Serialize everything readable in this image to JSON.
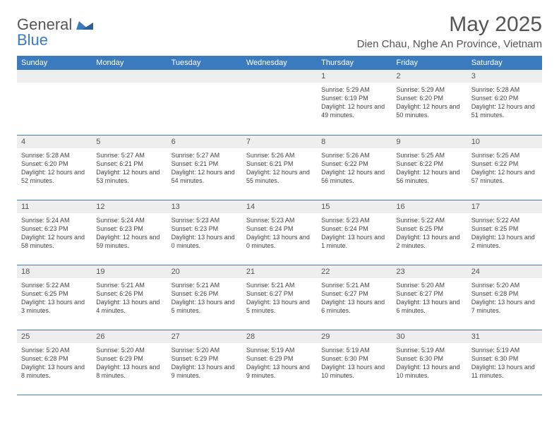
{
  "logo": {
    "word1": "General",
    "word2": "Blue",
    "accent_color": "#3a7bbf"
  },
  "title": "May 2025",
  "location": "Dien Chau, Nghe An Province, Vietnam",
  "header_bg": "#3a7bbf",
  "row_border": "#3a7bbf",
  "daynum_bg": "#eeeeee",
  "weekdays": [
    "Sunday",
    "Monday",
    "Tuesday",
    "Wednesday",
    "Thursday",
    "Friday",
    "Saturday"
  ],
  "weeks": [
    [
      null,
      null,
      null,
      null,
      {
        "n": "1",
        "sr": "5:29 AM",
        "ss": "6:19 PM",
        "dl": "12 hours and 49 minutes."
      },
      {
        "n": "2",
        "sr": "5:29 AM",
        "ss": "6:20 PM",
        "dl": "12 hours and 50 minutes."
      },
      {
        "n": "3",
        "sr": "5:28 AM",
        "ss": "6:20 PM",
        "dl": "12 hours and 51 minutes."
      }
    ],
    [
      {
        "n": "4",
        "sr": "5:28 AM",
        "ss": "6:20 PM",
        "dl": "12 hours and 52 minutes."
      },
      {
        "n": "5",
        "sr": "5:27 AM",
        "ss": "6:21 PM",
        "dl": "12 hours and 53 minutes."
      },
      {
        "n": "6",
        "sr": "5:27 AM",
        "ss": "6:21 PM",
        "dl": "12 hours and 54 minutes."
      },
      {
        "n": "7",
        "sr": "5:26 AM",
        "ss": "6:21 PM",
        "dl": "12 hours and 55 minutes."
      },
      {
        "n": "8",
        "sr": "5:26 AM",
        "ss": "6:22 PM",
        "dl": "12 hours and 56 minutes."
      },
      {
        "n": "9",
        "sr": "5:25 AM",
        "ss": "6:22 PM",
        "dl": "12 hours and 56 minutes."
      },
      {
        "n": "10",
        "sr": "5:25 AM",
        "ss": "6:22 PM",
        "dl": "12 hours and 57 minutes."
      }
    ],
    [
      {
        "n": "11",
        "sr": "5:24 AM",
        "ss": "6:23 PM",
        "dl": "12 hours and 58 minutes."
      },
      {
        "n": "12",
        "sr": "5:24 AM",
        "ss": "6:23 PM",
        "dl": "12 hours and 59 minutes."
      },
      {
        "n": "13",
        "sr": "5:23 AM",
        "ss": "6:23 PM",
        "dl": "13 hours and 0 minutes."
      },
      {
        "n": "14",
        "sr": "5:23 AM",
        "ss": "6:24 PM",
        "dl": "13 hours and 0 minutes."
      },
      {
        "n": "15",
        "sr": "5:23 AM",
        "ss": "6:24 PM",
        "dl": "13 hours and 1 minute."
      },
      {
        "n": "16",
        "sr": "5:22 AM",
        "ss": "6:25 PM",
        "dl": "13 hours and 2 minutes."
      },
      {
        "n": "17",
        "sr": "5:22 AM",
        "ss": "6:25 PM",
        "dl": "13 hours and 2 minutes."
      }
    ],
    [
      {
        "n": "18",
        "sr": "5:22 AM",
        "ss": "6:25 PM",
        "dl": "13 hours and 3 minutes."
      },
      {
        "n": "19",
        "sr": "5:21 AM",
        "ss": "6:26 PM",
        "dl": "13 hours and 4 minutes."
      },
      {
        "n": "20",
        "sr": "5:21 AM",
        "ss": "6:26 PM",
        "dl": "13 hours and 5 minutes."
      },
      {
        "n": "21",
        "sr": "5:21 AM",
        "ss": "6:27 PM",
        "dl": "13 hours and 5 minutes."
      },
      {
        "n": "22",
        "sr": "5:21 AM",
        "ss": "6:27 PM",
        "dl": "13 hours and 6 minutes."
      },
      {
        "n": "23",
        "sr": "5:20 AM",
        "ss": "6:27 PM",
        "dl": "13 hours and 6 minutes."
      },
      {
        "n": "24",
        "sr": "5:20 AM",
        "ss": "6:28 PM",
        "dl": "13 hours and 7 minutes."
      }
    ],
    [
      {
        "n": "25",
        "sr": "5:20 AM",
        "ss": "6:28 PM",
        "dl": "13 hours and 8 minutes."
      },
      {
        "n": "26",
        "sr": "5:20 AM",
        "ss": "6:29 PM",
        "dl": "13 hours and 8 minutes."
      },
      {
        "n": "27",
        "sr": "5:20 AM",
        "ss": "6:29 PM",
        "dl": "13 hours and 9 minutes."
      },
      {
        "n": "28",
        "sr": "5:19 AM",
        "ss": "6:29 PM",
        "dl": "13 hours and 9 minutes."
      },
      {
        "n": "29",
        "sr": "5:19 AM",
        "ss": "6:30 PM",
        "dl": "13 hours and 10 minutes."
      },
      {
        "n": "30",
        "sr": "5:19 AM",
        "ss": "6:30 PM",
        "dl": "13 hours and 10 minutes."
      },
      {
        "n": "31",
        "sr": "5:19 AM",
        "ss": "6:30 PM",
        "dl": "13 hours and 11 minutes."
      }
    ]
  ],
  "labels": {
    "sunrise": "Sunrise:",
    "sunset": "Sunset:",
    "daylight": "Daylight:"
  }
}
